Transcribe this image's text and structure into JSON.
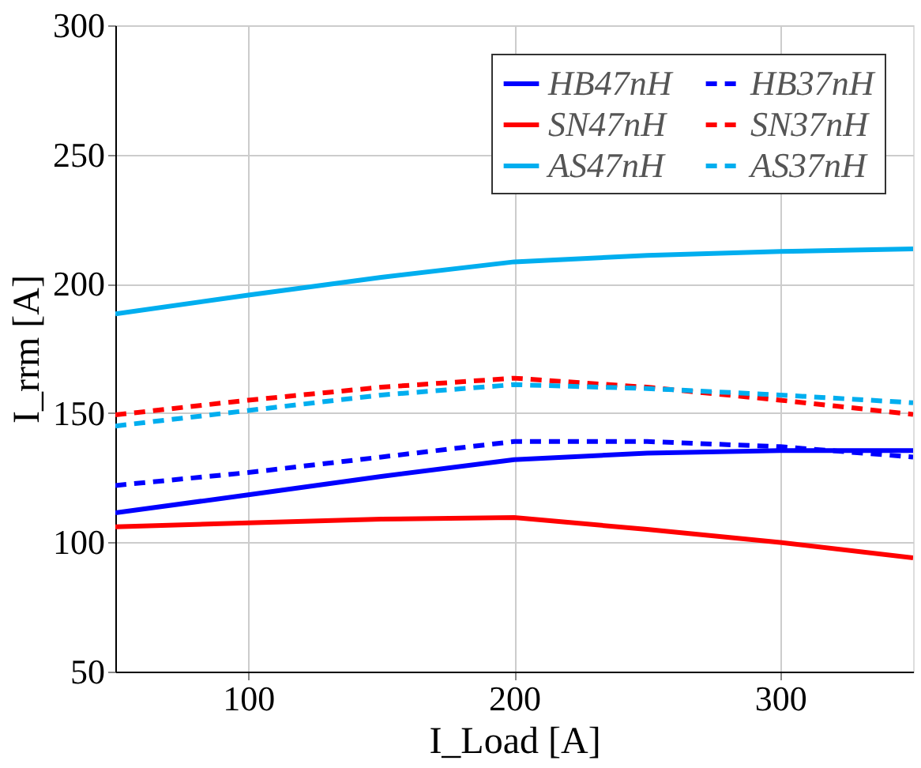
{
  "chart_data": {
    "type": "line",
    "xlabel": "I_Load [A]",
    "ylabel": "I_rrm [A]",
    "x": [
      50,
      100,
      150,
      200,
      250,
      300,
      350
    ],
    "xlim": [
      50,
      350
    ],
    "xticks": [
      100,
      200,
      300
    ],
    "ylim": [
      50,
      300
    ],
    "yticks": [
      50,
      100,
      150,
      200,
      250,
      300
    ],
    "grid": true,
    "legend": "top right",
    "marker": "none",
    "series": [
      {
        "name": "HB47nH",
        "color": "#0000ff",
        "line_style": "solid",
        "values": [
          111.4,
          118.4,
          125.5,
          132,
          134.5,
          135.5,
          135.5
        ]
      },
      {
        "name": "HB37nH",
        "color": "#0000ff",
        "line_style": "dashed",
        "values": [
          122,
          127,
          133,
          139,
          139,
          137,
          133
        ]
      },
      {
        "name": "SN47nH",
        "color": "#ff0000",
        "line_style": "solid",
        "values": [
          106,
          107.5,
          109,
          109.6,
          105,
          100,
          94
        ]
      },
      {
        "name": "SN37nH",
        "color": "#ff0000",
        "line_style": "dashed",
        "values": [
          149.3,
          155,
          160,
          163.5,
          160,
          155,
          149.5
        ]
      },
      {
        "name": "AS47nH",
        "color": "#00aeef",
        "line_style": "solid",
        "values": [
          188.4,
          195.6,
          202.5,
          208.5,
          211,
          212.5,
          213.5
        ]
      },
      {
        "name": "AS37nH",
        "color": "#00aeef",
        "line_style": "dashed",
        "values": [
          145,
          151,
          157,
          161,
          159.5,
          157,
          154
        ]
      }
    ]
  }
}
